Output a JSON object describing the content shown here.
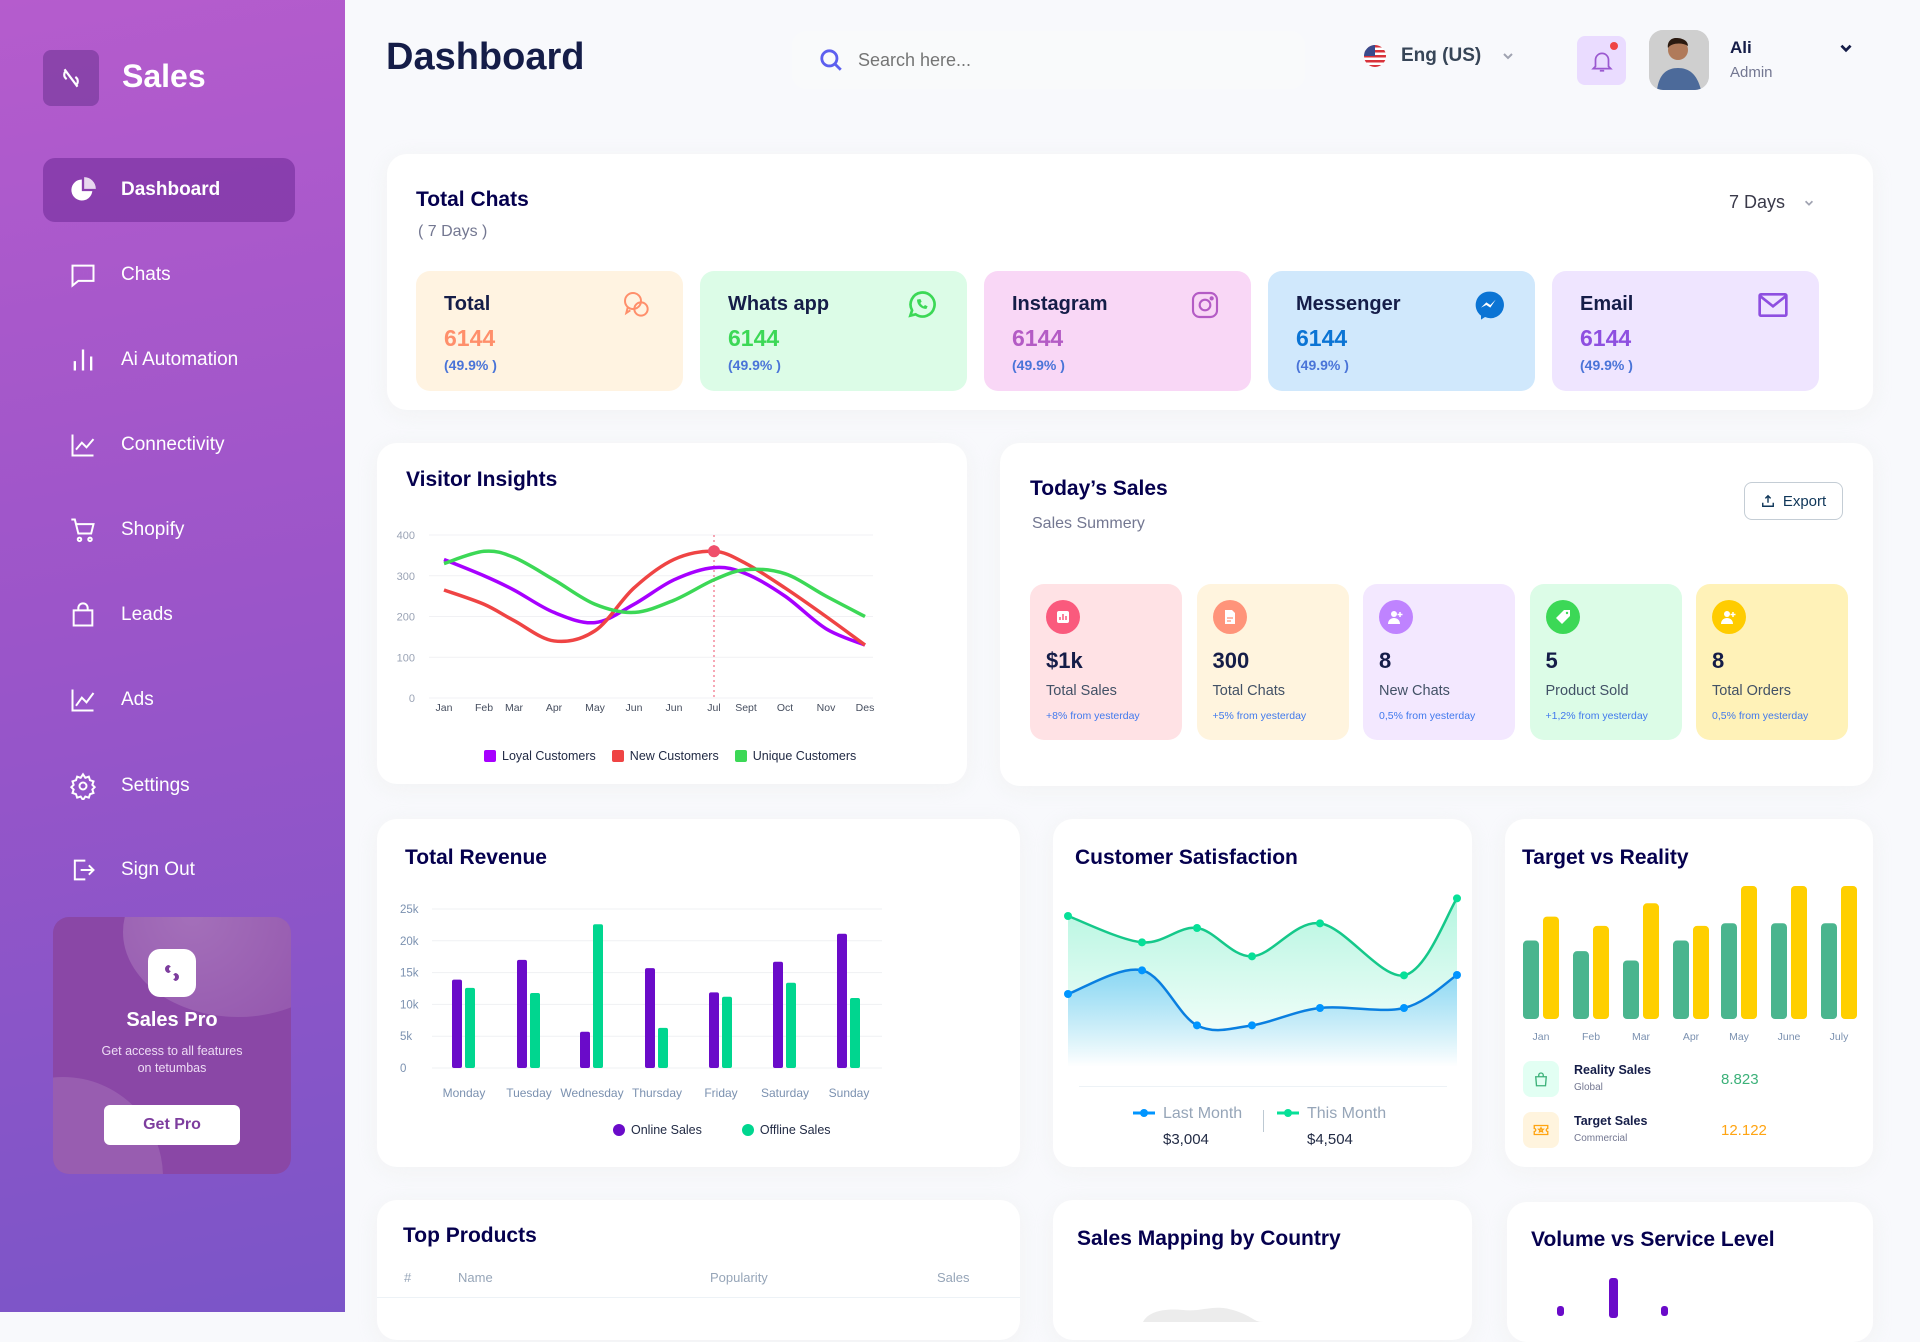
{
  "sidebar": {
    "brand": "Sales",
    "items": [
      {
        "label": "Dashboard",
        "icon": "pie-chart-icon",
        "active": true
      },
      {
        "label": "Chats",
        "icon": "chat-icon"
      },
      {
        "label": "Ai  Automation",
        "icon": "bar-chart-icon"
      },
      {
        "label": "Connectivity",
        "icon": "line-chart-icon"
      },
      {
        "label": "Shopify",
        "icon": "cart-icon"
      },
      {
        "label": "Leads",
        "icon": "shopping-bag-icon"
      },
      {
        "label": "Ads",
        "icon": "trend-chart-icon"
      },
      {
        "label": "Settings",
        "icon": "gear-icon"
      },
      {
        "label": "Sign Out",
        "icon": "sign-out-icon"
      }
    ],
    "promo": {
      "title": "Sales Pro",
      "text": "Get access to all features on tetumbas",
      "button": "Get Pro"
    }
  },
  "header": {
    "title": "Dashboard",
    "search_placeholder": "Search here...",
    "language": "Eng (US)",
    "user": {
      "name": "Ali",
      "role": "Admin"
    }
  },
  "total_chats": {
    "title": "Total Chats",
    "period": "( 7 Days )",
    "range_select": "7 Days",
    "cards": [
      {
        "label": "Total",
        "value": "6144",
        "percent": "(49.9% )",
        "icon": "chat-bubbles-icon",
        "bg": "#fff3e1",
        "color": "#ff8f6b"
      },
      {
        "label": "Whats app",
        "value": "6144",
        "percent": "(49.9% )",
        "icon": "whatsapp-icon",
        "bg": "#dcfce7",
        "color": "#3cd856"
      },
      {
        "label": "Instagram",
        "value": "6144",
        "percent": "(49.9% )",
        "icon": "instagram-icon",
        "bg": "#f9d7f6",
        "color": "#b45bc5"
      },
      {
        "label": "Messenger",
        "value": "6144",
        "percent": "(49.9% )",
        "icon": "messenger-icon",
        "bg": "#d0e8fc",
        "color": "#0b74d4"
      },
      {
        "label": "Email",
        "value": "6144",
        "percent": "(49.9% )",
        "icon": "mail-icon",
        "bg": "#efe5ff",
        "color": "#8e4fe0"
      }
    ]
  },
  "todays_sales": {
    "title": "Today’s Sales",
    "subtitle": "Sales Summery",
    "export_label": "Export",
    "cards": [
      {
        "value": "$1k",
        "label": "Total Sales",
        "sub": "+8% from yesterday",
        "icon": "bar-report-icon",
        "bg": "#ffe2e5",
        "color": "#fa5a7d"
      },
      {
        "value": "300",
        "label": "Total Chats",
        "sub": "+5% from yesterday",
        "icon": "document-icon",
        "bg": "#fff4de",
        "color": "#ff947a"
      },
      {
        "value": "8",
        "label": "New Chats",
        "sub": "0,5% from yesterday",
        "icon": "add-user-icon",
        "bg": "#f3e8ff",
        "color": "#bf83ff"
      },
      {
        "value": "5",
        "label": "Product Sold",
        "sub": "+1,2% from yesterday",
        "icon": "tag-icon",
        "bg": "#dcfce7",
        "color": "#3cd856"
      },
      {
        "value": "8",
        "label": "Total Orders",
        "sub": "0,5% from yesterday",
        "icon": "add-user-icon",
        "bg": "#fff2b8",
        "color": "#ffcc00"
      }
    ]
  },
  "target_summary": [
    {
      "label": "Reality Sales",
      "sub": "Global",
      "value": "8.823",
      "color": "#3cb179",
      "bg": "#e2fff3",
      "icon": "shopping-bag-icon"
    },
    {
      "label": "Target Sales",
      "sub": "Commercial",
      "value": "12.122",
      "color": "#ffa412",
      "bg": "#fff4de",
      "icon": "ticket-icon"
    }
  ],
  "satisfaction_summary": [
    {
      "label": "Last Month",
      "value": "$3,004"
    },
    {
      "label": "This Month",
      "value": "$4,504"
    }
  ],
  "top_products": {
    "title": "Top Products",
    "columns": [
      "#",
      "Name",
      "Popularity",
      "Sales"
    ]
  },
  "sales_mapping": {
    "title": "Sales Mapping by Country"
  },
  "volume_service": {
    "title": "Volume vs Service Level"
  },
  "chart_data": [
    {
      "type": "line",
      "title": "Visitor Insights",
      "categories": [
        "Jan",
        "Feb",
        "Mar",
        "Apr",
        "May",
        "Jun",
        "Jun",
        "Jul",
        "Sept",
        "Oct",
        "Nov",
        "Des"
      ],
      "ylim": [
        0,
        400
      ],
      "yticks": [
        "0",
        "100",
        "200",
        "300",
        "400"
      ],
      "grid": true,
      "legend_position": "bottom",
      "highlight": {
        "series": "New Customers",
        "category_index": 7
      },
      "series": [
        {
          "name": "Loyal Customers",
          "color": "#a700ff",
          "values": [
            340,
            300,
            265,
            210,
            185,
            230,
            290,
            320,
            305,
            250,
            170,
            130
          ]
        },
        {
          "name": "New Customers",
          "color": "#ef4444",
          "values": [
            265,
            230,
            190,
            140,
            165,
            270,
            340,
            360,
            330,
            270,
            200,
            130
          ]
        },
        {
          "name": "Unique Customers",
          "color": "#3cd856",
          "values": [
            330,
            360,
            345,
            290,
            230,
            210,
            240,
            290,
            315,
            305,
            250,
            200
          ]
        }
      ]
    },
    {
      "type": "bar",
      "title": "Total Revenue",
      "categories": [
        "Monday",
        "Tuesday",
        "Wednesday",
        "Thursday",
        "Friday",
        "Saturday",
        "Sunday"
      ],
      "ylim": [
        0,
        25000
      ],
      "yticks": [
        "0",
        "5k",
        "10k",
        "15k",
        "20k",
        "25k"
      ],
      "grid": true,
      "legend_position": "bottom",
      "series": [
        {
          "name": "Online Sales",
          "color": "#6a0bc9",
          "values": [
            13900,
            17000,
            5700,
            15700,
            11900,
            16700,
            21100
          ]
        },
        {
          "name": "Offline Sales",
          "color": "#00d68f",
          "values": [
            12600,
            11800,
            22600,
            6300,
            11200,
            13400,
            11000
          ]
        }
      ]
    },
    {
      "type": "area",
      "title": "Customer Satisfaction",
      "legend_position": "bottom",
      "series": [
        {
          "name": "Last Month",
          "color": "#0095ff",
          "values": [
            189,
            260,
            95,
            95,
            147,
            147,
            246
          ]
        },
        {
          "name": "This Month",
          "color": "#07e098",
          "values": [
            423,
            344,
            387,
            302,
            401,
            245,
            476
          ]
        }
      ]
    },
    {
      "type": "bar",
      "title": "Target vs Reality",
      "categories": [
        "Jan",
        "Feb",
        "Mar",
        "Apr",
        "May",
        "June",
        "July"
      ],
      "legend_position": "bottom",
      "series": [
        {
          "name": "Reality Sales",
          "color": "#4ab58e",
          "values": [
            5.9,
            5.1,
            4.4,
            5.9,
            7.2,
            7.2,
            7.2
          ]
        },
        {
          "name": "Target Sales",
          "color": "#ffcf00",
          "values": [
            7.7,
            7.0,
            8.7,
            7.0,
            10,
            10,
            10
          ]
        }
      ]
    }
  ]
}
